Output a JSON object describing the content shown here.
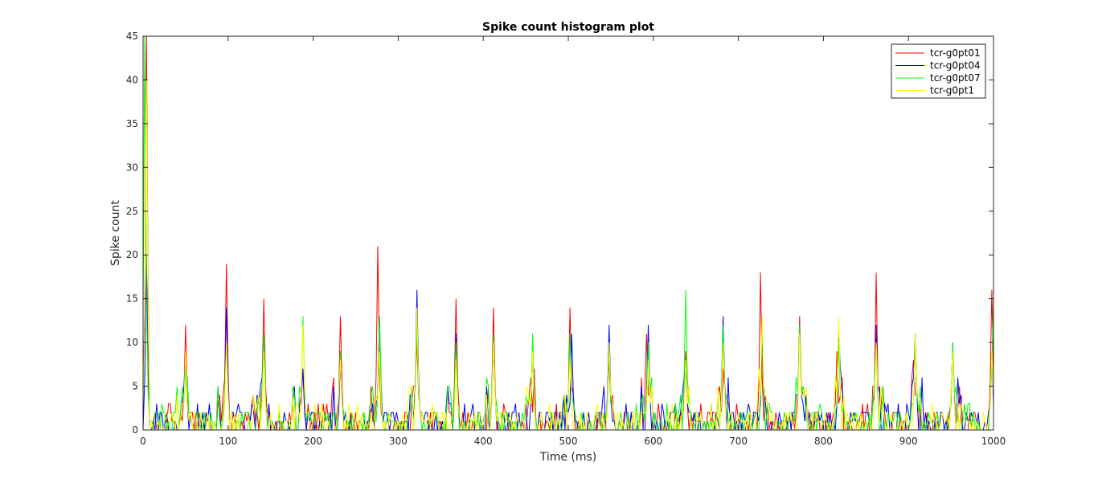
{
  "chart_data": {
    "type": "line",
    "title": "Spike count histogram plot",
    "xlabel": "Time (ms)",
    "ylabel": "Spike count",
    "xlim": [
      0,
      1000
    ],
    "ylim": [
      0,
      45
    ],
    "x_ticks": [
      0,
      100,
      200,
      300,
      400,
      500,
      600,
      700,
      800,
      900,
      1000
    ],
    "y_ticks": [
      0,
      5,
      10,
      15,
      20,
      25,
      30,
      35,
      40,
      45
    ],
    "grid": false,
    "legend_position": "top-right",
    "bin_ms": 2,
    "series": [
      {
        "name": "tcr-g0pt01",
        "color": "#ff0000",
        "peaks": [
          [
            4,
            45
          ],
          [
            50,
            12
          ],
          [
            97,
            19
          ],
          [
            141,
            15
          ],
          [
            187,
            7
          ],
          [
            231,
            13
          ],
          [
            276,
            21
          ],
          [
            321,
            10
          ],
          [
            367,
            15
          ],
          [
            411,
            14
          ],
          [
            456,
            6
          ],
          [
            502,
            14
          ],
          [
            547,
            8
          ],
          [
            592,
            11
          ],
          [
            637,
            9
          ],
          [
            682,
            7
          ],
          [
            726,
            18
          ],
          [
            771,
            13
          ],
          [
            816,
            9
          ],
          [
            862,
            18
          ],
          [
            906,
            8
          ],
          [
            952,
            9
          ],
          [
            998,
            16
          ]
        ]
      },
      {
        "name": "tcr-g0pt04",
        "color": "#0000ff",
        "peaks": [
          [
            4,
            20
          ],
          [
            50,
            8
          ],
          [
            97,
            14
          ],
          [
            141,
            11
          ],
          [
            187,
            7
          ],
          [
            232,
            8
          ],
          [
            277,
            13
          ],
          [
            322,
            16
          ],
          [
            368,
            11
          ],
          [
            412,
            10
          ],
          [
            457,
            9
          ],
          [
            503,
            11
          ],
          [
            548,
            12
          ],
          [
            593,
            12
          ],
          [
            638,
            7
          ],
          [
            682,
            13
          ],
          [
            727,
            11
          ],
          [
            772,
            12
          ],
          [
            817,
            11
          ],
          [
            862,
            12
          ],
          [
            907,
            11
          ],
          [
            952,
            10
          ],
          [
            998,
            9
          ]
        ]
      },
      {
        "name": "tcr-g0pt07",
        "color": "#00ff00",
        "peaks": [
          [
            2,
            45
          ],
          [
            50,
            7
          ],
          [
            98,
            10
          ],
          [
            142,
            11
          ],
          [
            187,
            13
          ],
          [
            232,
            9
          ],
          [
            277,
            13
          ],
          [
            322,
            12
          ],
          [
            368,
            10
          ],
          [
            412,
            11
          ],
          [
            457,
            11
          ],
          [
            502,
            11
          ],
          [
            548,
            9
          ],
          [
            593,
            10
          ],
          [
            637,
            16
          ],
          [
            682,
            12
          ],
          [
            727,
            12
          ],
          [
            772,
            12
          ],
          [
            817,
            10
          ],
          [
            862,
            10
          ],
          [
            907,
            10
          ],
          [
            952,
            10
          ],
          [
            999,
            15
          ]
        ]
      },
      {
        "name": "tcr-g0pt1",
        "color": "#ffff00",
        "peaks": [
          [
            3,
            40
          ],
          [
            50,
            9
          ],
          [
            98,
            10
          ],
          [
            142,
            9
          ],
          [
            187,
            12
          ],
          [
            232,
            8
          ],
          [
            277,
            9
          ],
          [
            322,
            14
          ],
          [
            368,
            8
          ],
          [
            412,
            10
          ],
          [
            457,
            9
          ],
          [
            502,
            8
          ],
          [
            548,
            10
          ],
          [
            593,
            8
          ],
          [
            637,
            8
          ],
          [
            682,
            10
          ],
          [
            727,
            13
          ],
          [
            772,
            11
          ],
          [
            817,
            13
          ],
          [
            862,
            10
          ],
          [
            907,
            11
          ],
          [
            952,
            9
          ],
          [
            998,
            9
          ]
        ]
      }
    ]
  }
}
